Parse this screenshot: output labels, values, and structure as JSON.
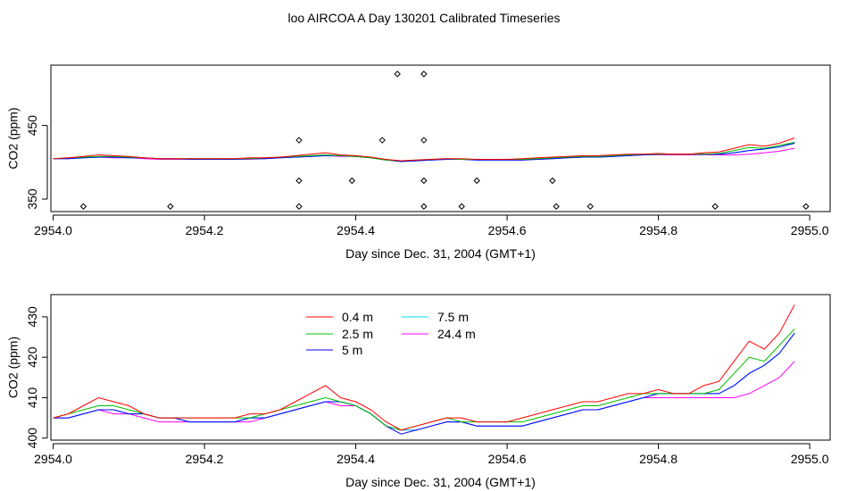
{
  "title": "loo AIRCOA A  Day 130201  Calibrated Timeseries",
  "colors": {
    "0.4 m": "#ff0000",
    "2.5 m": "#00c000",
    "5 m": "#0000ff",
    "7.5 m": "#00e0e0",
    "24.4 m": "#ff00ff",
    "flags": "#000000"
  },
  "chart_data": [
    {
      "type": "line",
      "ylabel": "CO2 (ppm)",
      "xlabel": "Day since Dec. 31, 2004 (GMT+1)",
      "xlim": [
        2953.997,
        2955.027
      ],
      "ylim": [
        333,
        532
      ],
      "xticks": [
        "2954.0",
        "2954.2",
        "2954.4",
        "2954.6",
        "2954.8",
        "2955.0"
      ],
      "yticks": [
        "350",
        "450"
      ],
      "grid": false,
      "legend": "none",
      "x": [
        2954.0,
        2954.02,
        2954.04,
        2954.06,
        2954.08,
        2954.1,
        2954.12,
        2954.14,
        2954.16,
        2954.18,
        2954.2,
        2954.22,
        2954.24,
        2954.26,
        2954.28,
        2954.3,
        2954.32,
        2954.34,
        2954.36,
        2954.38,
        2954.4,
        2954.42,
        2954.44,
        2954.46,
        2954.48,
        2954.5,
        2954.52,
        2954.54,
        2954.56,
        2954.58,
        2954.6,
        2954.62,
        2954.64,
        2954.66,
        2954.68,
        2954.7,
        2954.72,
        2954.74,
        2954.76,
        2954.78,
        2954.8,
        2954.82,
        2954.84,
        2954.86,
        2954.88,
        2954.9,
        2954.92,
        2954.94,
        2954.96,
        2954.98
      ],
      "series": [
        {
          "name": "0.4 m",
          "values": [
            405,
            406,
            408,
            410,
            409,
            408,
            406,
            405,
            405,
            405,
            405,
            405,
            405,
            406,
            406,
            407,
            409,
            411,
            413,
            410,
            409,
            407,
            404,
            402,
            403,
            404,
            405,
            405,
            404,
            404,
            404,
            405,
            406,
            407,
            408,
            409,
            409,
            410,
            411,
            411,
            412,
            411,
            411,
            413,
            414,
            419,
            424,
            422,
            426,
            433
          ]
        },
        {
          "name": "2.5 m",
          "values": [
            405,
            406,
            407,
            408,
            408,
            407,
            406,
            405,
            405,
            405,
            405,
            405,
            405,
            405,
            406,
            407,
            408,
            409,
            410,
            409,
            408,
            406,
            403,
            402,
            403,
            404,
            405,
            404,
            404,
            404,
            404,
            404,
            405,
            406,
            407,
            408,
            408,
            409,
            410,
            411,
            411,
            411,
            411,
            411,
            412,
            416,
            420,
            419,
            423,
            427
          ]
        },
        {
          "name": "5 m",
          "values": [
            405,
            405,
            406,
            407,
            407,
            406,
            406,
            405,
            405,
            404,
            404,
            404,
            404,
            405,
            405,
            406,
            407,
            408,
            409,
            409,
            408,
            406,
            403,
            401,
            402,
            403,
            404,
            404,
            403,
            403,
            403,
            403,
            404,
            405,
            406,
            407,
            407,
            408,
            409,
            410,
            411,
            411,
            411,
            411,
            411,
            413,
            416,
            418,
            421,
            426
          ]
        },
        {
          "name": "7.5 m",
          "values": [
            405,
            405,
            406,
            407,
            407,
            406,
            406,
            405,
            405,
            404,
            404,
            404,
            404,
            405,
            405,
            406,
            407,
            408,
            409,
            409,
            408,
            406,
            403,
            402,
            402,
            403,
            404,
            404,
            403,
            403,
            403,
            403,
            404,
            405,
            406,
            407,
            407,
            408,
            409,
            410,
            411,
            411,
            411,
            411,
            411,
            413,
            416,
            418,
            421,
            426
          ]
        },
        {
          "name": "24.4 m",
          "values": [
            405,
            405,
            406,
            407,
            406,
            406,
            405,
            404,
            404,
            404,
            404,
            404,
            404,
            404,
            405,
            406,
            407,
            408,
            409,
            408,
            408,
            406,
            403,
            402,
            402,
            403,
            404,
            404,
            403,
            403,
            403,
            403,
            404,
            405,
            406,
            407,
            407,
            408,
            409,
            410,
            410,
            410,
            410,
            410,
            410,
            410,
            411,
            413,
            415,
            419
          ]
        }
      ],
      "flags": [
        {
          "x": 2954.04,
          "y": 340
        },
        {
          "x": 2954.155,
          "y": 340
        },
        {
          "x": 2954.325,
          "y": 430
        },
        {
          "x": 2954.325,
          "y": 375
        },
        {
          "x": 2954.325,
          "y": 340
        },
        {
          "x": 2954.395,
          "y": 375
        },
        {
          "x": 2954.435,
          "y": 430
        },
        {
          "x": 2954.455,
          "y": 520
        },
        {
          "x": 2954.49,
          "y": 520
        },
        {
          "x": 2954.49,
          "y": 430
        },
        {
          "x": 2954.49,
          "y": 375
        },
        {
          "x": 2954.49,
          "y": 340
        },
        {
          "x": 2954.54,
          "y": 340
        },
        {
          "x": 2954.56,
          "y": 375
        },
        {
          "x": 2954.66,
          "y": 375
        },
        {
          "x": 2954.665,
          "y": 340
        },
        {
          "x": 2954.71,
          "y": 340
        },
        {
          "x": 2954.875,
          "y": 340
        },
        {
          "x": 2954.995,
          "y": 340
        }
      ]
    },
    {
      "type": "line",
      "ylabel": "CO2 (ppm)",
      "xlabel": "Day since Dec. 31, 2004 (GMT+1)",
      "xlim": [
        2953.997,
        2955.027
      ],
      "ylim": [
        399.5,
        435.5
      ],
      "xticks": [
        "2954.0",
        "2954.2",
        "2954.4",
        "2954.6",
        "2954.8",
        "2955.0"
      ],
      "yticks": [
        "400",
        "410",
        "420",
        "430"
      ],
      "grid": false,
      "legend": "top-left",
      "legend_entries": [
        "0.4 m",
        "2.5 m",
        "5 m",
        "7.5 m",
        "24.4 m"
      ]
    }
  ]
}
